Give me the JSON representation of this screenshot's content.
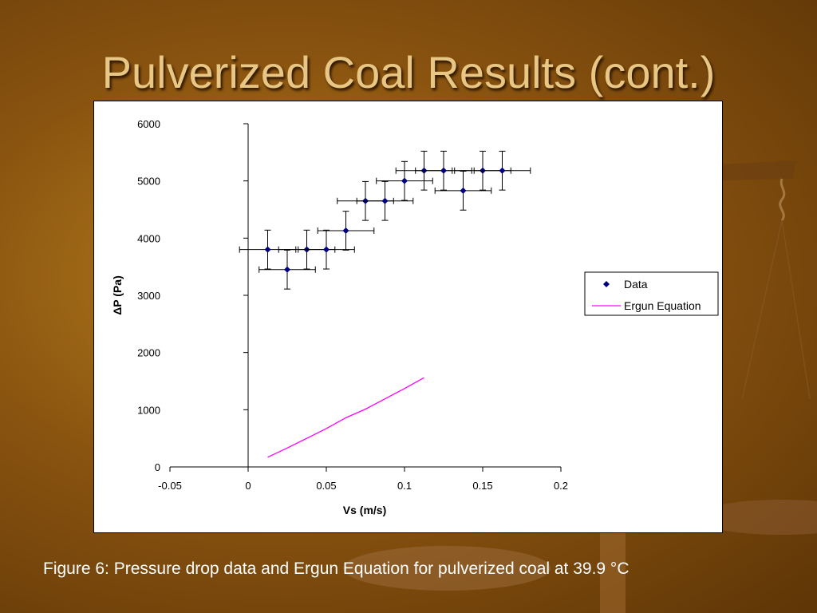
{
  "slide": {
    "title": "Pulverized Coal Results (cont.)",
    "caption": "Figure 6: Pressure drop data and Ergun Equation for pulverized coal at 39.9 °C"
  },
  "colors": {
    "background": "#8a5410",
    "title": "#e8c684",
    "data_marker": "#000080",
    "ergun_line": "#ff00ff"
  },
  "chart_data": {
    "type": "scatter",
    "title": "",
    "xlabel": "Vs (m/s)",
    "ylabel": "ΔP (Pa)",
    "xlim": [
      -0.05,
      0.2
    ],
    "ylim": [
      0,
      6000
    ],
    "xticks": [
      -0.05,
      0,
      0.05,
      0.1,
      0.15,
      0.2
    ],
    "xtick_labels": [
      "-0.05",
      "0",
      "0.05",
      "0.1",
      "0.15",
      "0.2"
    ],
    "yticks": [
      0,
      1000,
      2000,
      3000,
      4000,
      5000,
      6000
    ],
    "ytick_labels": [
      "0",
      "1000",
      "2000",
      "3000",
      "4000",
      "5000",
      "6000"
    ],
    "grid": false,
    "legend_position": "right",
    "series": [
      {
        "name": "Data",
        "kind": "markers",
        "marker": "diamond",
        "x": [
          0.0125,
          0.025,
          0.0375,
          0.05,
          0.0625,
          0.075,
          0.0875,
          0.1,
          0.1125,
          0.125,
          0.1375,
          0.15,
          0.1625
        ],
        "y": [
          3800,
          3450,
          3800,
          3800,
          4130,
          4650,
          4650,
          5000,
          5180,
          5180,
          4830,
          5180,
          5180
        ],
        "x_error": 0.018,
        "y_error": 340
      },
      {
        "name": "Ergun Equation",
        "kind": "line",
        "x": [
          0.0125,
          0.025,
          0.0375,
          0.05,
          0.0625,
          0.075,
          0.0875,
          0.1,
          0.1125
        ],
        "y": [
          170,
          330,
          500,
          670,
          860,
          1010,
          1190,
          1370,
          1560
        ]
      }
    ]
  }
}
